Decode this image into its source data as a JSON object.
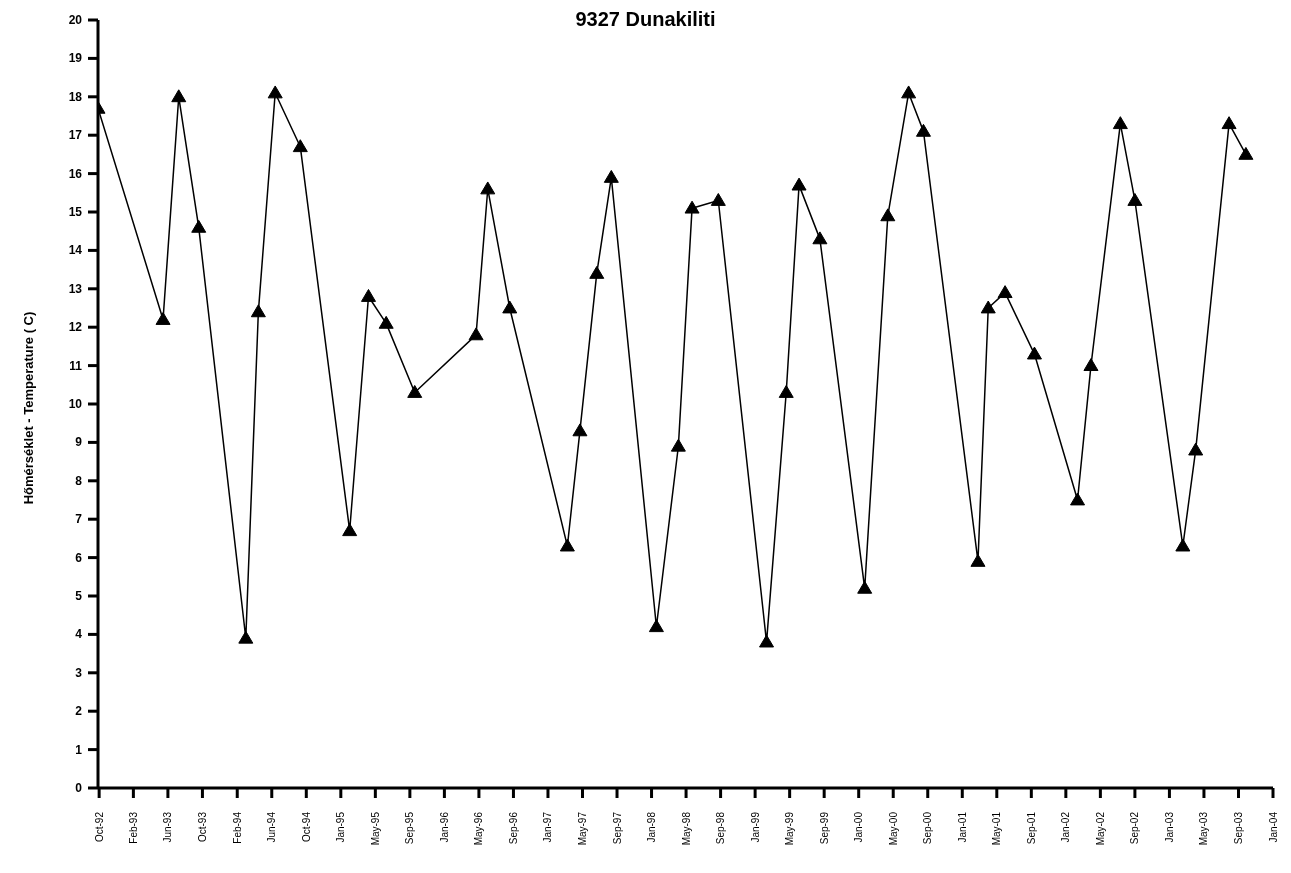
{
  "chart_data": {
    "type": "line",
    "title": "9327 Dunakiliti",
    "ylabel": "Hőmérséklet - Temperature ( C)",
    "x": [
      "1992-10-01",
      "1993-05-17",
      "1993-07-11",
      "1993-09-19",
      "1994-03-03",
      "1994-04-16",
      "1994-06-14",
      "1994-09-10",
      "1995-03-02",
      "1995-05-07",
      "1995-07-08",
      "1995-10-16",
      "1996-05-18",
      "1996-06-28",
      "1996-09-13",
      "1997-04-03",
      "1997-05-17",
      "1997-07-15",
      "1997-09-04",
      "1998-02-09",
      "1998-04-27",
      "1998-06-14",
      "1998-09-14",
      "1999-03-02",
      "1999-05-10",
      "1999-06-24",
      "1999-09-05",
      "2000-02-09",
      "2000-04-30",
      "2000-07-12",
      "2000-09-02",
      "2001-03-12",
      "2001-04-17",
      "2001-06-15",
      "2001-09-26",
      "2002-02-24",
      "2002-04-12",
      "2002-07-24",
      "2002-09-13",
      "2003-02-28",
      "2003-04-14",
      "2003-08-09",
      "2003-10-07"
    ],
    "series": [
      {
        "color": "#000000",
        "values": [
          17.7,
          12.2,
          18.0,
          14.6,
          3.9,
          12.4,
          18.1,
          16.7,
          6.7,
          12.8,
          12.1,
          10.3,
          11.8,
          15.6,
          12.5,
          6.3,
          9.3,
          13.4,
          15.9,
          4.2,
          8.9,
          15.1,
          15.3,
          3.8,
          10.3,
          15.7,
          14.3,
          5.2,
          14.9,
          18.1,
          17.1,
          5.9,
          12.5,
          12.9,
          11.3,
          7.5,
          11.0,
          17.3,
          15.3,
          6.3,
          8.8,
          17.3,
          16.5
        ]
      }
    ],
    "xlim": [
      "1992-10-01",
      "2004-01-10"
    ],
    "xticks": [
      {
        "value": "1992-10-05",
        "label": "Oct-92"
      },
      {
        "value": "1993-02-02",
        "label": "Feb-93"
      },
      {
        "value": "1993-06-03",
        "label": "Jun-93"
      },
      {
        "value": "1993-10-02",
        "label": "Oct-93"
      },
      {
        "value": "1994-02-01",
        "label": "Feb-94"
      },
      {
        "value": "1994-06-02",
        "label": "Jun-94"
      },
      {
        "value": "1994-10-01",
        "label": "Oct-94"
      },
      {
        "value": "1995-01-30",
        "label": "Jan-95"
      },
      {
        "value": "1995-05-31",
        "label": "May-95"
      },
      {
        "value": "1995-09-29",
        "label": "Sep-95"
      },
      {
        "value": "1996-01-28",
        "label": "Jan-96"
      },
      {
        "value": "1996-05-28",
        "label": "May-96"
      },
      {
        "value": "1996-09-26",
        "label": "Sep-96"
      },
      {
        "value": "1997-01-25",
        "label": "Jan-97"
      },
      {
        "value": "1997-05-26",
        "label": "May-97"
      },
      {
        "value": "1997-09-24",
        "label": "Sep-97"
      },
      {
        "value": "1998-01-23",
        "label": "Jan-98"
      },
      {
        "value": "1998-05-24",
        "label": "May-98"
      },
      {
        "value": "1998-09-22",
        "label": "Sep-98"
      },
      {
        "value": "1999-01-21",
        "label": "Jan-99"
      },
      {
        "value": "1999-05-22",
        "label": "May-99"
      },
      {
        "value": "1999-09-20",
        "label": "Sep-99"
      },
      {
        "value": "2000-01-19",
        "label": "Jan-00"
      },
      {
        "value": "2000-05-19",
        "label": "May-00"
      },
      {
        "value": "2000-09-17",
        "label": "Sep-00"
      },
      {
        "value": "2001-01-16",
        "label": "Jan-01"
      },
      {
        "value": "2001-05-17",
        "label": "May-01"
      },
      {
        "value": "2001-09-15",
        "label": "Sep-01"
      },
      {
        "value": "2002-01-14",
        "label": "Jan-02"
      },
      {
        "value": "2002-05-15",
        "label": "May-02"
      },
      {
        "value": "2002-09-13",
        "label": "Sep-02"
      },
      {
        "value": "2003-01-12",
        "label": "Jan-03"
      },
      {
        "value": "2003-05-13",
        "label": "May-03"
      },
      {
        "value": "2003-09-11",
        "label": "Sep-03"
      },
      {
        "value": "2004-01-10",
        "label": "Jan-04"
      }
    ],
    "ylim": [
      0,
      20
    ],
    "yticks": [
      0,
      1,
      2,
      3,
      4,
      5,
      6,
      7,
      8,
      9,
      10,
      11,
      12,
      13,
      14,
      15,
      16,
      17,
      18,
      19,
      20
    ],
    "grid": false,
    "legend": false,
    "marker": "triangle",
    "line_style": "solid"
  }
}
